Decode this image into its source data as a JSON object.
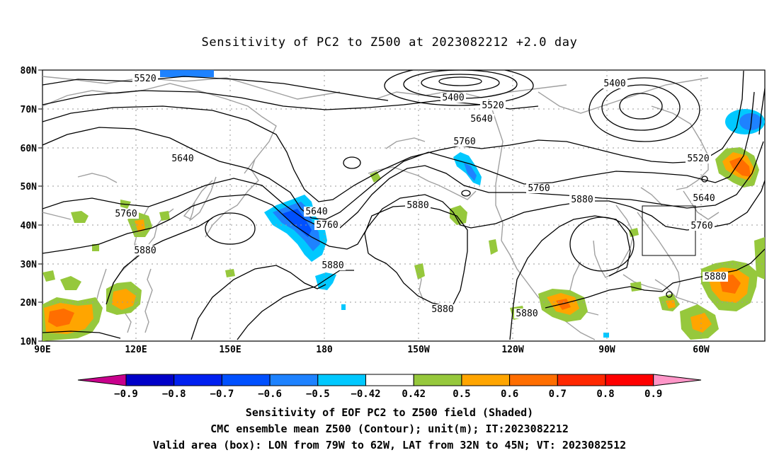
{
  "title": "Sensitivity of PC2 to Z500 at 2023082212 +2.0 day",
  "map": {
    "lat_labels": [
      "80N",
      "70N",
      "60N",
      "50N",
      "40N",
      "30N",
      "20N",
      "10N"
    ],
    "lon_labels": [
      "90E",
      "120E",
      "150E",
      "180",
      "150W",
      "120W",
      "90W",
      "60W"
    ],
    "contour_labels": [
      "5520",
      "5400",
      "5400",
      "5520",
      "5640",
      "5640",
      "5760",
      "5640",
      "5760",
      "5880",
      "5880",
      "5760",
      "5880",
      "5760",
      "5640",
      "5520",
      "5880",
      "5880",
      "5880"
    ],
    "valid_box": {
      "lon_west": "79W",
      "lon_east": "62W",
      "lat_south": "32N",
      "lat_north": "45N"
    }
  },
  "colorbar": {
    "ticks": [
      "−0.9",
      "−0.8",
      "−0.7",
      "−0.6",
      "−0.5",
      "−0.42",
      "0.42",
      "0.5",
      "0.6",
      "0.7",
      "0.8",
      "0.9"
    ],
    "colors": [
      "#c8008c",
      "#0000c8",
      "#0020f0",
      "#0050ff",
      "#1e82ff",
      "#00c8ff",
      "#ffffff",
      "#96c83c",
      "#ffa500",
      "#ff6e00",
      "#ff2800",
      "#ff0000",
      "#ff96c8"
    ]
  },
  "footer": {
    "line1": "Sensitivity of EOF PC2 to Z500 field (Shaded)",
    "line2": "CMC ensemble mean Z500 (Contour); unit(m); IT:2023082212",
    "line3": "Valid area (box): LON from 79W to 62W, LAT from 32N to 45N; VT: 2023082512"
  }
}
